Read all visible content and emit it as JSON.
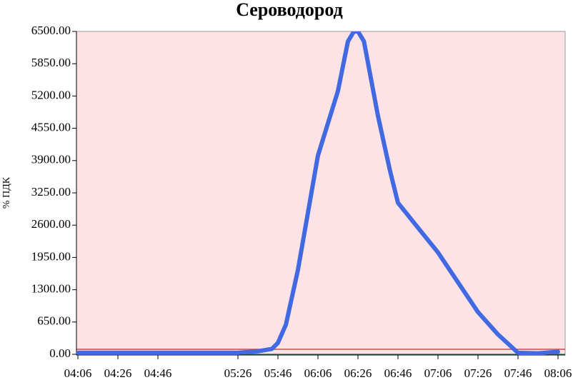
{
  "chart_data": {
    "type": "line",
    "title": "Сероводород",
    "y_label": "% ПДК",
    "x": [
      "04:06",
      "05:26",
      "05:36",
      "05:43",
      "05:46",
      "05:50",
      "05:56",
      "06:06",
      "06:16",
      "06:21",
      "06:24",
      "06:26",
      "06:29",
      "06:36",
      "06:42",
      "06:46",
      "06:56",
      "07:06",
      "07:16",
      "07:26",
      "07:36",
      "07:46",
      "07:56",
      "08:06"
    ],
    "series": [
      {
        "name": "Сероводород",
        "color": "#4169e1",
        "values": [
          30,
          30,
          60,
          110,
          230,
          600,
          1700,
          4000,
          5300,
          6300,
          6500,
          6500,
          6300,
          4800,
          3700,
          3050,
          2550,
          2050,
          1450,
          850,
          400,
          30,
          20,
          50
        ]
      }
    ],
    "xlim": [
      "04:06",
      "08:06"
    ],
    "xticks": [
      "04:06",
      "04:26",
      "04:46",
      "05:26",
      "05:46",
      "06:06",
      "06:26",
      "06:46",
      "07:06",
      "07:26",
      "07:46",
      "08:06"
    ],
    "ylim": [
      0,
      6500
    ],
    "yticks": [
      {
        "value": 0,
        "label": "0.00"
      },
      {
        "value": 650,
        "label": "650.00"
      },
      {
        "value": 1300,
        "label": "1300.00"
      },
      {
        "value": 1950,
        "label": "1950.00"
      },
      {
        "value": 2600,
        "label": "2600.00"
      },
      {
        "value": 3250,
        "label": "3250.00"
      },
      {
        "value": 3900,
        "label": "3900.00"
      },
      {
        "value": 4550,
        "label": "4550.00"
      },
      {
        "value": 5200,
        "label": "5200.00"
      },
      {
        "value": 5850,
        "label": "5850.00"
      },
      {
        "value": 6500,
        "label": "6500.00"
      }
    ],
    "background": "#fde3e6",
    "thresholds": [
      {
        "value": 100,
        "color": "#c0504d"
      },
      {
        "value": 0,
        "color": "#2e8b57"
      }
    ]
  }
}
